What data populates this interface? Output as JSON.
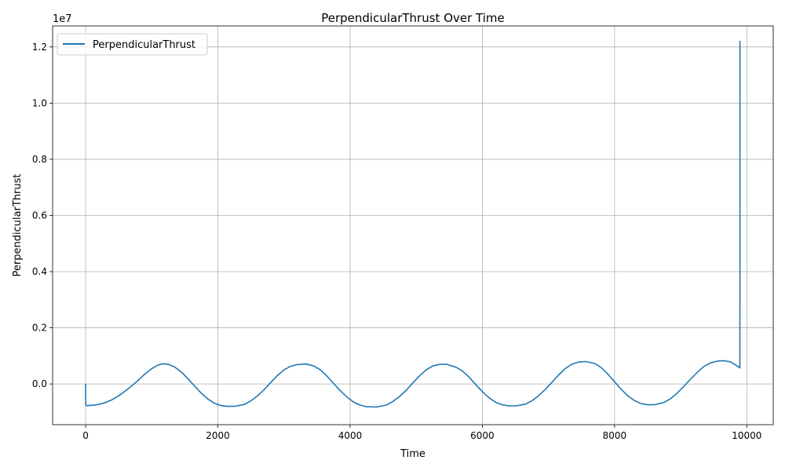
{
  "chart_data": {
    "type": "line",
    "title": "PerpendicularThrust Over Time",
    "xlabel": "Time",
    "ylabel": "PerpendicularThrust",
    "offset_text": "1e7",
    "xlim": [
      -500,
      10400
    ],
    "ylim": [
      -1.45,
      12.75
    ],
    "y_scale": 10000000,
    "x_ticks": [
      0,
      2000,
      4000,
      6000,
      8000,
      10000
    ],
    "x_tick_labels": [
      "0",
      "2000",
      "4000",
      "6000",
      "8000",
      "10000"
    ],
    "y_ticks": [
      0.0,
      0.2,
      0.4,
      0.6,
      0.8,
      1.0,
      1.2
    ],
    "y_tick_labels": [
      "0.0",
      "0.2",
      "0.4",
      "0.6",
      "0.8",
      "1.0",
      "1.2"
    ],
    "grid": true,
    "legend_position": "top-left",
    "series": [
      {
        "name": "PerpendicularThrust",
        "color": "#1f77b4",
        "x": [
          0,
          1,
          10,
          100,
          200,
          300,
          400,
          500,
          600,
          700,
          800,
          900,
          1000,
          1100,
          1175,
          1250,
          1350,
          1450,
          1550,
          1650,
          1750,
          1850,
          1950,
          2050,
          2150,
          2270,
          2400,
          2500,
          2600,
          2700,
          2800,
          2900,
          3000,
          3100,
          3200,
          3335,
          3450,
          3550,
          3650,
          3750,
          3850,
          3950,
          4050,
          4150,
          4250,
          4400,
          4550,
          4650,
          4750,
          4850,
          4950,
          5050,
          5150,
          5250,
          5350,
          5460,
          5600,
          5700,
          5800,
          5900,
          6000,
          6100,
          6200,
          6300,
          6400,
          6510,
          6650,
          6750,
          6850,
          6950,
          7050,
          7150,
          7250,
          7350,
          7450,
          7560,
          7700,
          7800,
          7900,
          8000,
          8100,
          8200,
          8300,
          8400,
          8500,
          8600,
          8750,
          8850,
          8950,
          9050,
          9150,
          9250,
          9350,
          9450,
          9550,
          9650,
          9750,
          9850,
          9895,
          9896,
          9897
        ],
        "y": [
          0.0,
          -0.75,
          -0.77,
          -0.76,
          -0.73,
          -0.66,
          -0.56,
          -0.42,
          -0.25,
          -0.06,
          0.14,
          0.36,
          0.55,
          0.68,
          0.72,
          0.7,
          0.6,
          0.42,
          0.18,
          -0.08,
          -0.33,
          -0.54,
          -0.69,
          -0.77,
          -0.8,
          -0.79,
          -0.73,
          -0.6,
          -0.42,
          -0.2,
          0.05,
          0.3,
          0.5,
          0.63,
          0.69,
          0.71,
          0.64,
          0.5,
          0.28,
          0.02,
          -0.24,
          -0.46,
          -0.64,
          -0.75,
          -0.81,
          -0.82,
          -0.75,
          -0.62,
          -0.44,
          -0.22,
          0.04,
          0.29,
          0.5,
          0.64,
          0.7,
          0.7,
          0.6,
          0.46,
          0.24,
          -0.02,
          -0.27,
          -0.49,
          -0.65,
          -0.74,
          -0.78,
          -0.78,
          -0.72,
          -0.6,
          -0.42,
          -0.2,
          0.05,
          0.31,
          0.54,
          0.7,
          0.78,
          0.8,
          0.73,
          0.58,
          0.35,
          0.08,
          -0.19,
          -0.42,
          -0.59,
          -0.7,
          -0.74,
          -0.74,
          -0.66,
          -0.52,
          -0.32,
          -0.08,
          0.17,
          0.41,
          0.62,
          0.75,
          0.81,
          0.83,
          0.79,
          0.65,
          0.57,
          4.0,
          12.22
        ]
      }
    ]
  }
}
